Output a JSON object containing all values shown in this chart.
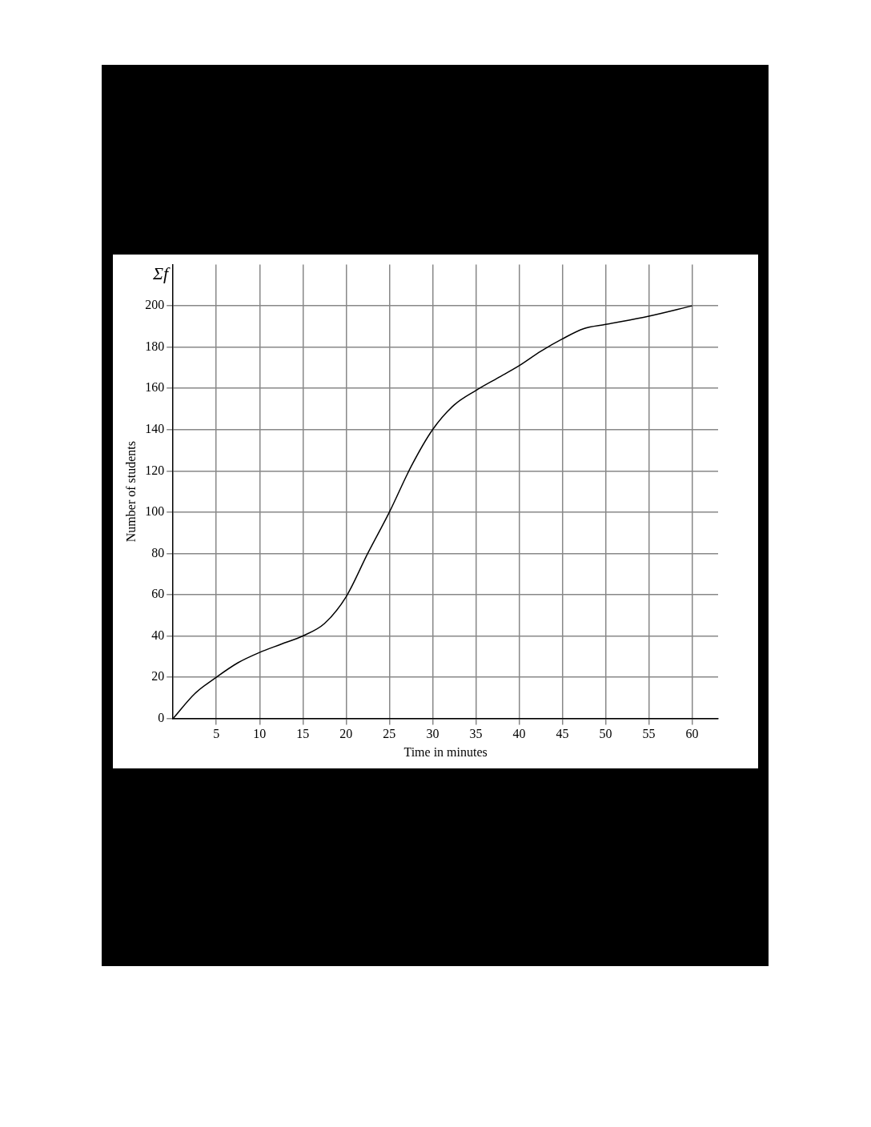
{
  "chart_data": {
    "type": "line",
    "xlabel": "Time in minutes",
    "ylabel": "Number of students",
    "annotations": [
      "Σf"
    ],
    "x": [
      0,
      2.5,
      5,
      7.5,
      10,
      12.5,
      15,
      17.5,
      20,
      22.5,
      25,
      27.5,
      30,
      32.5,
      35,
      37.5,
      40,
      42.5,
      45,
      47.5,
      50,
      55,
      60
    ],
    "series": [
      {
        "color": "#000000",
        "values": [
          0,
          12,
          20,
          27,
          32,
          36,
          40,
          46,
          59,
          80,
          100,
          122,
          140,
          152,
          159,
          165,
          171,
          178,
          184,
          189,
          191,
          195,
          200
        ]
      }
    ],
    "xlim": [
      0,
      63
    ],
    "xticks": [
      5,
      10,
      15,
      20,
      25,
      30,
      35,
      40,
      45,
      50,
      55,
      60
    ],
    "ylim": [
      0,
      220
    ],
    "yticks": [
      0,
      20,
      40,
      60,
      80,
      100,
      120,
      140,
      160,
      180,
      200
    ],
    "grid": true,
    "legend": false,
    "marker": "none",
    "line_style": "solid"
  }
}
